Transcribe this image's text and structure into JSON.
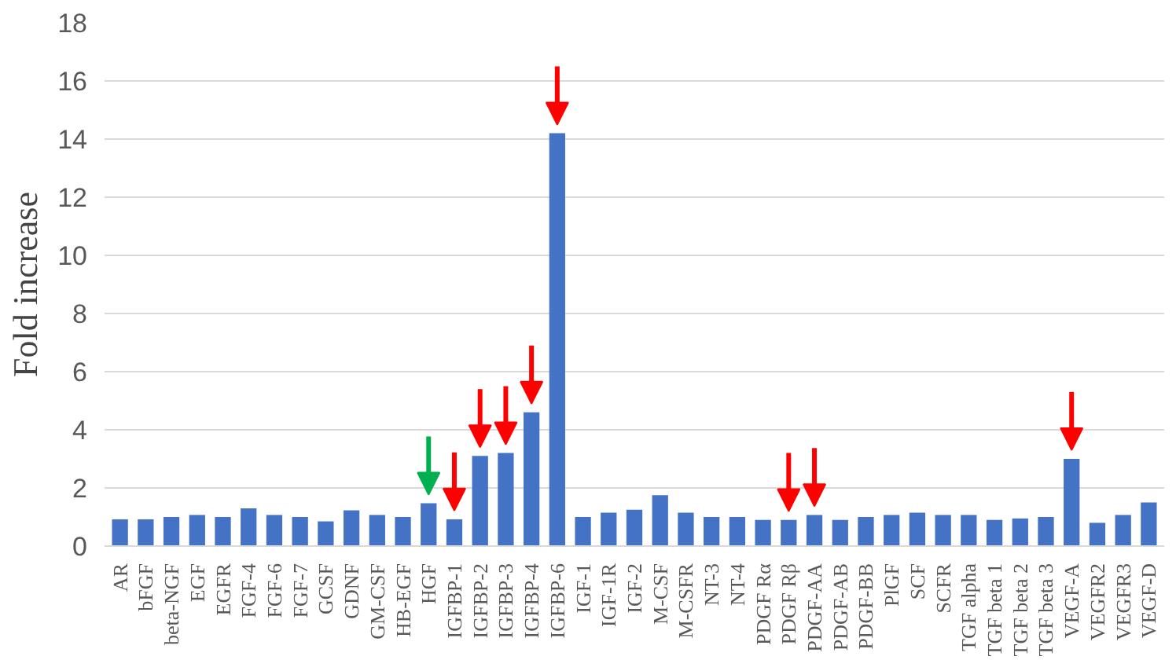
{
  "chart_data": {
    "type": "bar",
    "ylabel": "Fold increase",
    "categories": [
      "AR",
      "bFGF",
      "beta-NGF",
      "EGF",
      "EGFR",
      "FGF-4",
      "FGF-6",
      "FGF-7",
      "GCSF",
      "GDNF",
      "GM-CSF",
      "HB-EGF",
      "HGF",
      "IGFBP-1",
      "IGFBP-2",
      "IGFBP-3",
      "IGFBP-4",
      "IGFBP-6",
      "IGF-1",
      "IGF-1R",
      "IGF-2",
      "M-CSF",
      "M-CSFR",
      "NT-3",
      "NT-4",
      "PDGF Rα",
      "PDGF Rβ",
      "PDGF-AA",
      "PDGF-AB",
      "PDGF-BB",
      "PlGF",
      "SCF",
      "SCFR",
      "TGF alpha",
      "TGF beta 1",
      "TGF beta 2",
      "TGF beta 3",
      "VEGF-A",
      "VEGFR2",
      "VEGFR3",
      "VEGF-D"
    ],
    "values": [
      0.92,
      0.92,
      1.0,
      1.07,
      1.0,
      1.3,
      1.07,
      1.0,
      0.85,
      1.23,
      1.07,
      1.0,
      1.47,
      0.92,
      3.1,
      3.2,
      4.6,
      14.2,
      1.0,
      1.15,
      1.25,
      1.75,
      1.15,
      1.0,
      1.0,
      0.9,
      0.9,
      1.07,
      0.9,
      1.0,
      1.07,
      1.15,
      1.07,
      1.07,
      0.9,
      0.95,
      1.0,
      3.0,
      0.8,
      1.07,
      1.5
    ],
    "color": "#4472c4",
    "ylim": [
      0,
      18
    ],
    "yticks": [
      0,
      2,
      4,
      6,
      8,
      10,
      12,
      14,
      16,
      18
    ],
    "grid": "y"
  }
}
